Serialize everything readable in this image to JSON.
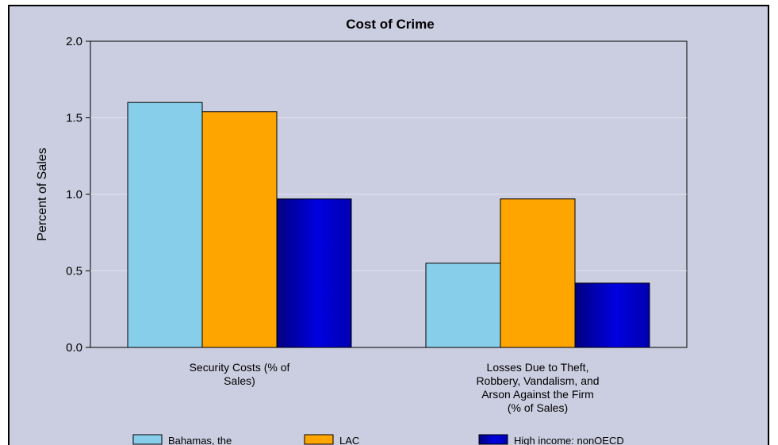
{
  "chart_data": {
    "type": "bar",
    "title": "Cost of Crime",
    "ylabel": "Percent of Sales",
    "xlabel": "",
    "ylim": [
      0,
      2.0
    ],
    "yticks": [
      "0.0",
      "0.5",
      "1.0",
      "1.5",
      "2.0"
    ],
    "grid": true,
    "legend_position": "bottom",
    "categories": [
      [
        "Security Costs (% of",
        "Sales)"
      ],
      [
        "Losses Due to Theft,",
        "Robbery, Vandalism, and",
        "Arson Against the Firm",
        "(% of Sales)"
      ]
    ],
    "series": [
      {
        "name": "Bahamas, the",
        "color": "#87ceeb",
        "values": [
          1.6,
          0.55
        ]
      },
      {
        "name": "LAC",
        "color": "#ffa500",
        "values": [
          1.54,
          0.97
        ]
      },
      {
        "name": "High income: nonOECD",
        "color": "#0000cd",
        "values": [
          0.97,
          0.42
        ]
      }
    ]
  }
}
